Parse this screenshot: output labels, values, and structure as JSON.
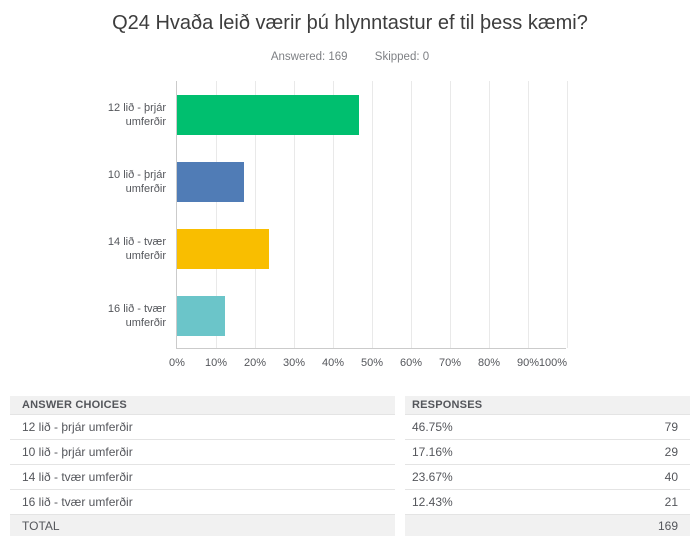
{
  "header": {
    "title": "Q24 Hvaða leið værir þú hlynntastur ef til þess kæmi?",
    "answered": "Answered: 169",
    "skipped": "Skipped: 0"
  },
  "chart_data": {
    "type": "bar",
    "orientation": "horizontal",
    "categories": [
      "12 lið - þrjár umferðir",
      "10 lið - þrjár umferðir",
      "14 lið - tvær umferðir",
      "16 lið - tvær umferðir"
    ],
    "values": [
      46.75,
      17.16,
      23.67,
      12.43
    ],
    "bar_colors": [
      "#00BF6F",
      "#507CB6",
      "#F9BE00",
      "#6BC5C9"
    ],
    "x_ticks": [
      "0%",
      "10%",
      "20%",
      "30%",
      "40%",
      "50%",
      "60%",
      "70%",
      "80%",
      "90%",
      "100%"
    ],
    "xlim": [
      0,
      100
    ],
    "grid": true,
    "legend": false,
    "axis_text_color": "#54565b"
  },
  "table": {
    "headers": [
      "ANSWER CHOICES",
      "RESPONSES"
    ],
    "rows": [
      {
        "label": "12 lið - þrjár umferðir",
        "percent": "46.75%",
        "count": "79"
      },
      {
        "label": "10 lið - þrjár umferðir",
        "percent": "17.16%",
        "count": "29"
      },
      {
        "label": "14 lið - tvær umferðir",
        "percent": "23.67%",
        "count": "40"
      },
      {
        "label": "16 lið - tvær umferðir",
        "percent": "12.43%",
        "count": "21"
      }
    ],
    "total_label": "TOTAL",
    "total_count": "169"
  }
}
